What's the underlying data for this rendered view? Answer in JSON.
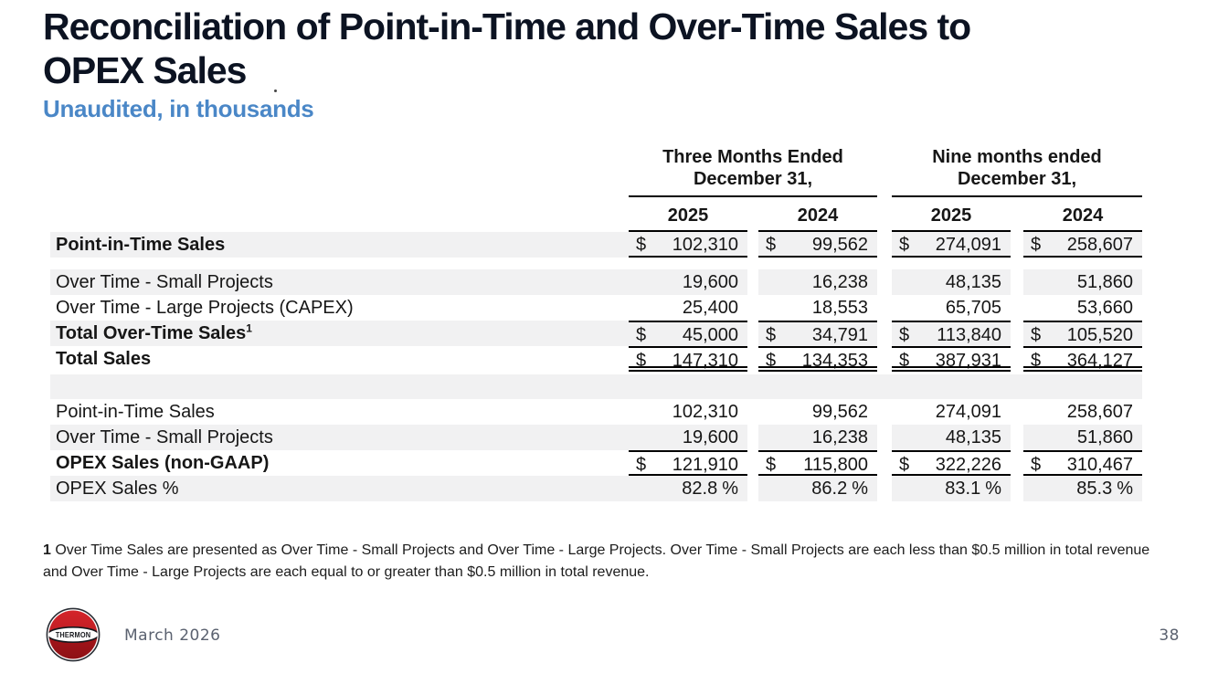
{
  "header": {
    "title_line1": "Reconciliation of Point-in-Time and Over-Time Sales to",
    "title_line2": "OPEX Sales",
    "subtitle": "Unaudited, in thousands"
  },
  "table": {
    "currency_symbol": "$",
    "percent_symbol": "%",
    "groups": [
      {
        "line1": "Three Months Ended",
        "line2": "December 31,"
      },
      {
        "line1": "Nine months ended",
        "line2": "December 31,"
      }
    ],
    "years": [
      "2025",
      "2024",
      "2025",
      "2024"
    ],
    "rows": [
      {
        "label": "Point-in-Time Sales",
        "sup": "",
        "bold": true,
        "shaded": true,
        "dollar": true,
        "percent": false,
        "border": "bottom",
        "values": [
          "102,310",
          "99,562",
          "274,091",
          "258,607"
        ]
      },
      {
        "type": "spacer"
      },
      {
        "label": "Over Time - Small Projects",
        "sup": "",
        "bold": false,
        "shaded": true,
        "dollar": false,
        "percent": false,
        "border": "none",
        "values": [
          "19,600",
          "16,238",
          "48,135",
          "51,860"
        ]
      },
      {
        "label": "Over Time - Large Projects (CAPEX)",
        "sup": "",
        "bold": false,
        "shaded": false,
        "dollar": false,
        "percent": false,
        "border": "none",
        "values": [
          "25,400",
          "18,553",
          "65,705",
          "53,660"
        ]
      },
      {
        "label": "Total Over-Time Sales",
        "sup": "1",
        "bold": true,
        "shaded": true,
        "dollar": true,
        "percent": false,
        "border": "top",
        "values": [
          "45,000",
          "34,791",
          "113,840",
          "105,520"
        ]
      },
      {
        "label": "Total Sales",
        "sup": "",
        "bold": true,
        "shaded": false,
        "dollar": true,
        "percent": false,
        "border": "top-doublebottom",
        "values": [
          "147,310",
          "134,353",
          "387,931",
          "364,127"
        ]
      },
      {
        "type": "blank"
      },
      {
        "label": "Point-in-Time Sales",
        "sup": "",
        "bold": false,
        "shaded": false,
        "dollar": false,
        "percent": false,
        "border": "none",
        "values": [
          "102,310",
          "99,562",
          "274,091",
          "258,607"
        ]
      },
      {
        "label": "Over Time - Small Projects",
        "sup": "",
        "bold": false,
        "shaded": true,
        "dollar": false,
        "percent": false,
        "border": "none",
        "values": [
          "19,600",
          "16,238",
          "48,135",
          "51,860"
        ]
      },
      {
        "label": "OPEX Sales (non-GAAP)",
        "sup": "",
        "bold": true,
        "shaded": false,
        "dollar": true,
        "percent": false,
        "border": "top-bottom",
        "values": [
          "121,910",
          "115,800",
          "322,226",
          "310,467"
        ]
      },
      {
        "label": "OPEX Sales %",
        "sup": "",
        "bold": false,
        "shaded": true,
        "dollar": false,
        "percent": true,
        "border": "none",
        "values": [
          "82.8",
          "86.2",
          "83.1",
          "85.3"
        ]
      }
    ]
  },
  "footnote": {
    "marker": "1",
    "text": "Over Time Sales are presented as Over Time - Small Projects and Over Time - Large Projects. Over Time - Small Projects are each less than $0.5 million in total revenue and Over Time - Large Projects are each equal to or greater than $0.5 million in total revenue."
  },
  "footer": {
    "logo_text": "THERMON",
    "date": "March 2026",
    "page_number": "38"
  },
  "colors": {
    "title_navy": "#0c1322",
    "subtitle_blue": "#4a87c7",
    "row_shade_gray": "#f1f1f2",
    "logo_red_top": "#d4242a",
    "logo_red_bottom": "#8e1116",
    "footer_gray": "#5b6270"
  }
}
